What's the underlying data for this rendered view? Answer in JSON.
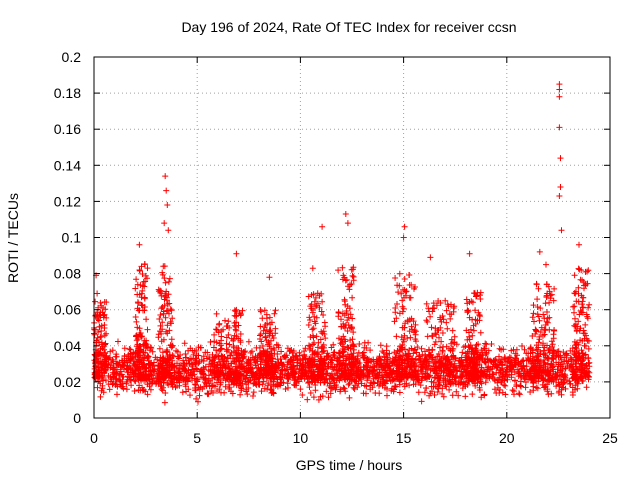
{
  "chart_data": {
    "type": "scatter",
    "title": "Day 196 of 2024, Rate Of TEC Index for receiver ccsn",
    "xlabel": "GPS time / hours",
    "ylabel": "ROTI / TECUs",
    "xlim": [
      0,
      25
    ],
    "ylim": [
      0,
      0.2
    ],
    "xticks": [
      0,
      5,
      10,
      15,
      20,
      25
    ],
    "xtick_labels": [
      "0",
      "5",
      "10",
      "15",
      "20",
      "25"
    ],
    "yticks": [
      0,
      0.02,
      0.04,
      0.06,
      0.08,
      0.1,
      0.12,
      0.14,
      0.16,
      0.18,
      0.2
    ],
    "ytick_labels": [
      "0",
      "0.02",
      "0.04",
      "0.06",
      "0.08",
      "0.1",
      "0.12",
      "0.14",
      "0.16",
      "0.18",
      "0.2"
    ],
    "grid": true,
    "marker": "+",
    "color": "#ff0000",
    "series": [
      {
        "name": "ROTI",
        "description": "dense band of samples, 0 to 24 h",
        "baseline": {
          "min": 0.008,
          "max": 0.04,
          "typical": 0.022
        },
        "notable_points": [
          {
            "x": 0.1,
            "y": 0.079
          },
          {
            "x": 0.15,
            "y": 0.069
          },
          {
            "x": 2.2,
            "y": 0.096
          },
          {
            "x": 2.3,
            "y": 0.084
          },
          {
            "x": 3.45,
            "y": 0.134
          },
          {
            "x": 3.5,
            "y": 0.126
          },
          {
            "x": 3.55,
            "y": 0.118
          },
          {
            "x": 3.4,
            "y": 0.108
          },
          {
            "x": 3.6,
            "y": 0.104
          },
          {
            "x": 6.9,
            "y": 0.091
          },
          {
            "x": 8.5,
            "y": 0.078
          },
          {
            "x": 10.6,
            "y": 0.083
          },
          {
            "x": 11.05,
            "y": 0.106
          },
          {
            "x": 12.2,
            "y": 0.113
          },
          {
            "x": 12.3,
            "y": 0.108
          },
          {
            "x": 15.05,
            "y": 0.106
          },
          {
            "x": 15.0,
            "y": 0.1
          },
          {
            "x": 16.3,
            "y": 0.089
          },
          {
            "x": 18.2,
            "y": 0.091
          },
          {
            "x": 21.6,
            "y": 0.092
          },
          {
            "x": 21.9,
            "y": 0.085
          },
          {
            "x": 22.55,
            "y": 0.185
          },
          {
            "x": 22.55,
            "y": 0.182
          },
          {
            "x": 22.55,
            "y": 0.178
          },
          {
            "x": 22.55,
            "y": 0.161
          },
          {
            "x": 22.6,
            "y": 0.144
          },
          {
            "x": 22.6,
            "y": 0.128
          },
          {
            "x": 22.55,
            "y": 0.123
          },
          {
            "x": 22.65,
            "y": 0.104
          },
          {
            "x": 23.5,
            "y": 0.096
          }
        ],
        "activity_windows": [
          {
            "start": 0.0,
            "end": 0.6,
            "peak": 0.065
          },
          {
            "start": 2.0,
            "end": 2.6,
            "peak": 0.09
          },
          {
            "start": 3.1,
            "end": 3.8,
            "peak": 0.085
          },
          {
            "start": 5.8,
            "end": 7.2,
            "peak": 0.06
          },
          {
            "start": 8.0,
            "end": 8.8,
            "peak": 0.06
          },
          {
            "start": 10.4,
            "end": 11.2,
            "peak": 0.07
          },
          {
            "start": 11.8,
            "end": 12.6,
            "peak": 0.085
          },
          {
            "start": 14.5,
            "end": 15.6,
            "peak": 0.08
          },
          {
            "start": 16.0,
            "end": 17.5,
            "peak": 0.065
          },
          {
            "start": 18.0,
            "end": 18.8,
            "peak": 0.07
          },
          {
            "start": 21.2,
            "end": 22.3,
            "peak": 0.075
          },
          {
            "start": 23.2,
            "end": 24.0,
            "peak": 0.085
          }
        ]
      }
    ]
  }
}
